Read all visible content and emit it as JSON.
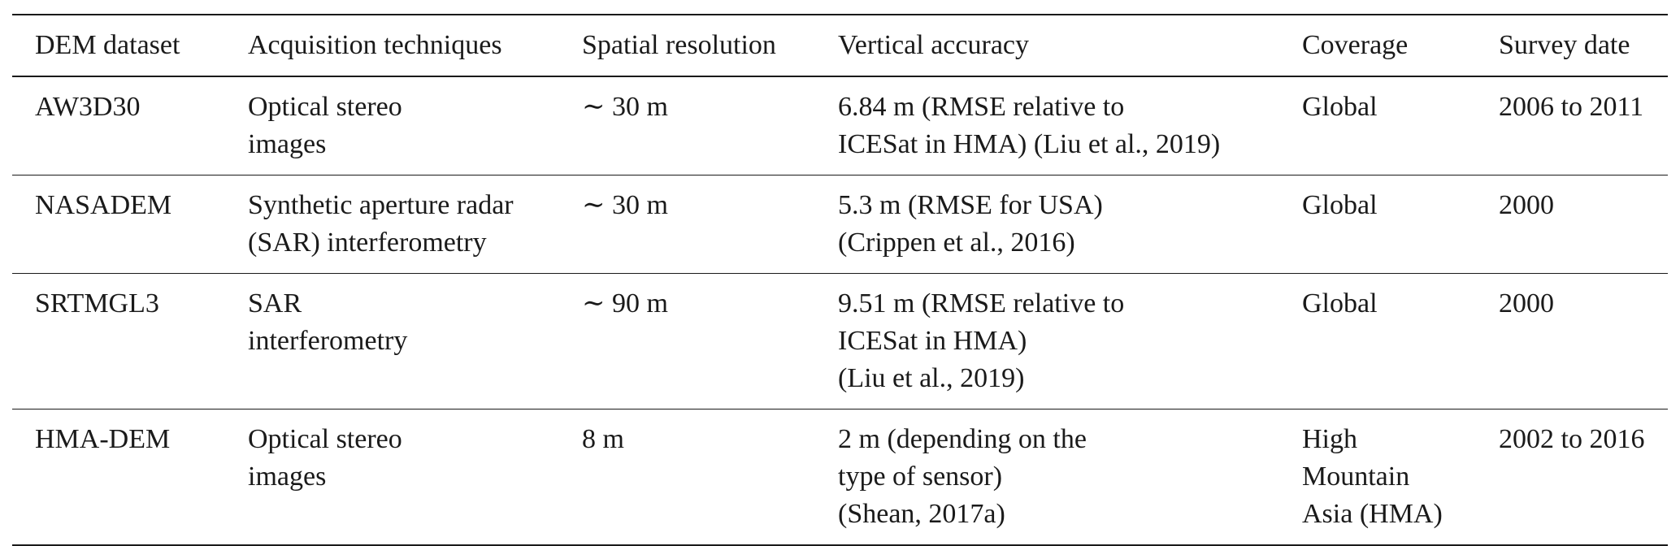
{
  "table": {
    "headers": [
      "DEM dataset",
      "Acquisition techniques",
      "Spatial resolution",
      "Vertical accuracy",
      "Coverage",
      "Survey date"
    ],
    "rows": [
      [
        "AW3D30",
        "Optical stereo\nimages",
        "∼ 30 m",
        "6.84 m (RMSE relative to\nICESat in HMA) (Liu et al., 2019)",
        "Global",
        "2006 to 2011"
      ],
      [
        "NASADEM",
        "Synthetic aperture radar\n(SAR) interferometry",
        "∼ 30 m",
        "5.3 m (RMSE for USA)\n(Crippen et al., 2016)",
        "Global",
        "2000"
      ],
      [
        "SRTMGL3",
        "SAR\ninterferometry",
        "∼ 90 m",
        "9.51 m (RMSE relative to\nICESat in HMA)\n(Liu et al., 2019)",
        "Global",
        "2000"
      ],
      [
        "HMA-DEM",
        "Optical stereo\nimages",
        "8 m",
        "2 m (depending on the\ntype of sensor)\n(Shean, 2017a)",
        "High\nMountain\nAsia (HMA)",
        "2002 to 2016"
      ]
    ]
  }
}
